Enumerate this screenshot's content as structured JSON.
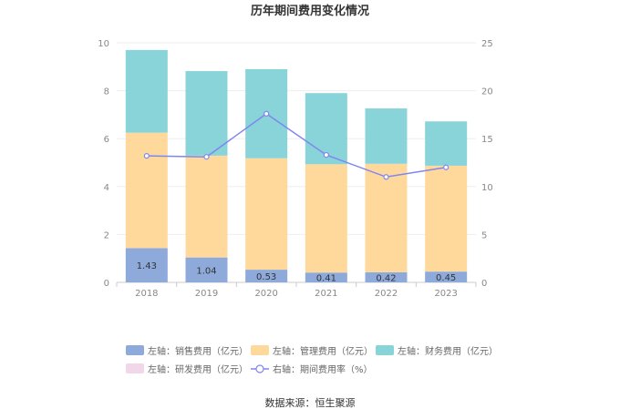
{
  "chart_data": {
    "type": "bar",
    "title": "历年期间费用变化情况",
    "categories": [
      "2018",
      "2019",
      "2020",
      "2021",
      "2022",
      "2023"
    ],
    "stacked": true,
    "y_left": {
      "min": 0,
      "max": 10,
      "ticks": [
        "0",
        "2",
        "4",
        "6",
        "8",
        "10"
      ]
    },
    "y_right": {
      "min": 0,
      "max": 25,
      "ticks": [
        "0",
        "5",
        "10",
        "15",
        "20",
        "25"
      ]
    },
    "grid": true,
    "legend_position": "bottom",
    "series": [
      {
        "name": "左轴：销售费用（亿元）",
        "axis": "left",
        "kind": "bar",
        "color": "#8eaadb",
        "values": [
          1.43,
          1.04,
          0.53,
          0.41,
          0.42,
          0.45
        ],
        "labels": [
          "1.43",
          "1.04",
          "0.53",
          "0.41",
          "0.42",
          "0.45"
        ]
      },
      {
        "name": "左轴：管理费用（亿元）",
        "axis": "left",
        "kind": "bar",
        "color": "#ffd99b",
        "values": [
          4.82,
          4.25,
          4.65,
          4.52,
          4.53,
          4.42
        ]
      },
      {
        "name": "左轴：财务费用（亿元）",
        "axis": "left",
        "kind": "bar",
        "color": "#88d4d9",
        "values": [
          3.45,
          3.53,
          3.72,
          2.97,
          2.31,
          1.85
        ]
      },
      {
        "name": "左轴：研发费用（亿元）",
        "axis": "left",
        "kind": "bar",
        "color": "#f2d6ea",
        "values": [
          0,
          0,
          0,
          0,
          0,
          0
        ]
      },
      {
        "name": "右轴：期间费用率（%）",
        "axis": "right",
        "kind": "line",
        "color": "#7f86f0",
        "values": [
          13.2,
          13.1,
          17.6,
          13.3,
          11.0,
          12.0
        ]
      }
    ],
    "source": "数据来源：恒生聚源"
  }
}
